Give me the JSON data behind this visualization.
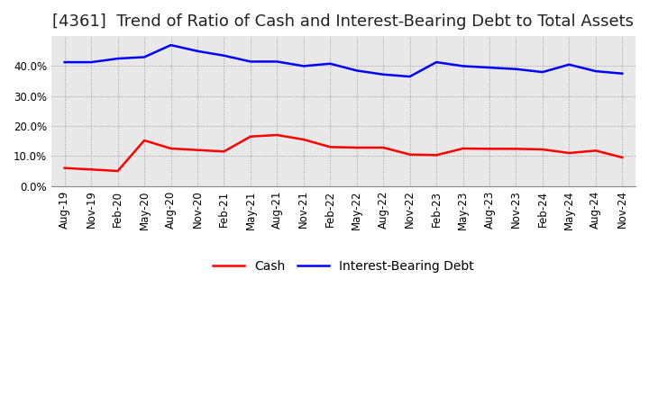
{
  "title": "[4361]  Trend of Ratio of Cash and Interest-Bearing Debt to Total Assets",
  "x_labels": [
    "Aug-19",
    "Nov-19",
    "Feb-20",
    "May-20",
    "Aug-20",
    "Nov-20",
    "Feb-21",
    "May-21",
    "Aug-21",
    "Nov-21",
    "Feb-22",
    "May-22",
    "Aug-22",
    "Nov-22",
    "Feb-23",
    "May-23",
    "Aug-23",
    "Nov-23",
    "Feb-24",
    "May-24",
    "Aug-24",
    "Nov-24"
  ],
  "cash": [
    0.06,
    0.055,
    0.05,
    0.152,
    0.125,
    0.12,
    0.115,
    0.165,
    0.17,
    0.155,
    0.13,
    0.128,
    0.128,
    0.105,
    0.103,
    0.125,
    0.124,
    0.124,
    0.122,
    0.11,
    0.118,
    0.095
  ],
  "interest_bearing_debt": [
    0.413,
    0.413,
    0.425,
    0.43,
    0.47,
    0.45,
    0.435,
    0.415,
    0.415,
    0.4,
    0.408,
    0.385,
    0.372,
    0.365,
    0.413,
    0.4,
    0.395,
    0.39,
    0.38,
    0.405,
    0.383,
    0.375
  ],
  "cash_color": "#FF0000",
  "debt_color": "#0000FF",
  "background_color": "#FFFFFF",
  "plot_bg_color": "#E8E8E8",
  "grid_color": "#999999",
  "ylim": [
    0.0,
    0.5
  ],
  "yticks": [
    0.0,
    0.1,
    0.2,
    0.3,
    0.4
  ],
  "legend_cash": "Cash",
  "legend_debt": "Interest-Bearing Debt",
  "title_fontsize": 13,
  "tick_fontsize": 8.5,
  "legend_fontsize": 10,
  "line_width": 1.8
}
